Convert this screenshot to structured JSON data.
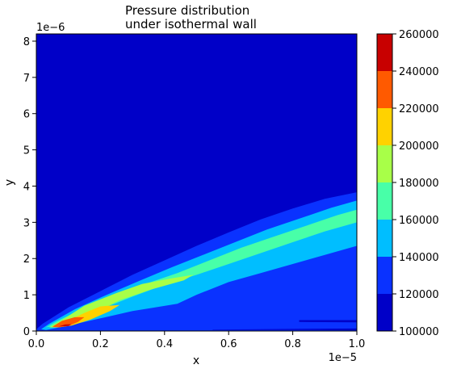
{
  "chart_data": {
    "type": "contourf",
    "title_lines": [
      "Pressure distribution",
      "under isothermal wall"
    ],
    "xlabel": "x",
    "ylabel": "y",
    "x_offset_text": "1e−5",
    "y_offset_text": "1e−6",
    "xlim": [
      0.0,
      1.0
    ],
    "ylim": [
      0.0,
      8.2
    ],
    "xticks": [
      0.0,
      0.2,
      0.4,
      0.6,
      0.8,
      1.0
    ],
    "xtick_labels": [
      "0.0",
      "0.2",
      "0.4",
      "0.6",
      "0.8",
      "1.0"
    ],
    "yticks": [
      0,
      1,
      2,
      3,
      4,
      5,
      6,
      7,
      8
    ],
    "ytick_labels": [
      "0",
      "1",
      "2",
      "3",
      "4",
      "5",
      "6",
      "7",
      "8"
    ],
    "colorbar": {
      "levels": [
        100000,
        120000,
        140000,
        160000,
        180000,
        200000,
        220000,
        240000,
        260000
      ],
      "tick_labels": [
        "100000",
        "120000",
        "140000",
        "160000",
        "180000",
        "200000",
        "220000",
        "240000",
        "260000"
      ],
      "colors": [
        "#0000c8",
        "#0a32ff",
        "#00beff",
        "#48ffa8",
        "#a8ff48",
        "#ffd200",
        "#ff5a00",
        "#c80000"
      ],
      "ranges": [
        "100000-120000",
        "120000-140000",
        "140000-160000",
        "160000-180000",
        "180000-200000",
        "200000-220000",
        "220000-240000",
        "240000-260000"
      ]
    },
    "regions": [
      {
        "level": 1,
        "name": "120000-140000 band",
        "points": [
          [
            0.0,
            0.05
          ],
          [
            0.02,
            0.2
          ],
          [
            0.1,
            0.65
          ],
          [
            0.2,
            1.1
          ],
          [
            0.3,
            1.55
          ],
          [
            0.4,
            1.95
          ],
          [
            0.5,
            2.35
          ],
          [
            0.6,
            2.72
          ],
          [
            0.7,
            3.08
          ],
          [
            0.8,
            3.38
          ],
          [
            0.9,
            3.65
          ],
          [
            1.0,
            3.83
          ],
          [
            1.0,
            0.0
          ],
          [
            0.0,
            0.0
          ]
        ]
      },
      {
        "level": 2,
        "name": "140000-160000 band",
        "points": [
          [
            0.015,
            0.05
          ],
          [
            0.04,
            0.2
          ],
          [
            0.12,
            0.6
          ],
          [
            0.22,
            1.0
          ],
          [
            0.32,
            1.38
          ],
          [
            0.42,
            1.75
          ],
          [
            0.52,
            2.1
          ],
          [
            0.62,
            2.45
          ],
          [
            0.72,
            2.8
          ],
          [
            0.82,
            3.1
          ],
          [
            0.92,
            3.4
          ],
          [
            1.0,
            3.6
          ],
          [
            1.0,
            2.35
          ],
          [
            0.9,
            2.1
          ],
          [
            0.8,
            1.85
          ],
          [
            0.7,
            1.6
          ],
          [
            0.6,
            1.35
          ],
          [
            0.5,
            1.0
          ],
          [
            0.44,
            0.75
          ],
          [
            0.3,
            0.55
          ],
          [
            0.2,
            0.35
          ],
          [
            0.1,
            0.15
          ],
          [
            0.05,
            0.06
          ],
          [
            0.03,
            0.03
          ]
        ]
      },
      {
        "level": 3,
        "name": "160000-180000 band",
        "points": [
          [
            0.03,
            0.1
          ],
          [
            0.06,
            0.25
          ],
          [
            0.14,
            0.6
          ],
          [
            0.24,
            0.95
          ],
          [
            0.34,
            1.3
          ],
          [
            0.44,
            1.6
          ],
          [
            0.54,
            1.95
          ],
          [
            0.64,
            2.3
          ],
          [
            0.74,
            2.6
          ],
          [
            0.84,
            2.9
          ],
          [
            0.94,
            3.2
          ],
          [
            1.0,
            3.35
          ],
          [
            1.0,
            3.0
          ],
          [
            0.9,
            2.75
          ],
          [
            0.8,
            2.45
          ],
          [
            0.7,
            2.15
          ],
          [
            0.6,
            1.85
          ],
          [
            0.5,
            1.55
          ],
          [
            0.4,
            1.28
          ],
          [
            0.3,
            0.95
          ],
          [
            0.2,
            0.6
          ],
          [
            0.12,
            0.35
          ],
          [
            0.06,
            0.15
          ]
        ]
      },
      {
        "level": 4,
        "name": "180000-200000 region",
        "points": [
          [
            0.04,
            0.1
          ],
          [
            0.08,
            0.3
          ],
          [
            0.15,
            0.7
          ],
          [
            0.25,
            1.05
          ],
          [
            0.33,
            1.3
          ],
          [
            0.42,
            1.45
          ],
          [
            0.49,
            1.55
          ],
          [
            0.46,
            1.4
          ],
          [
            0.36,
            1.15
          ],
          [
            0.26,
            0.85
          ],
          [
            0.18,
            0.5
          ],
          [
            0.1,
            0.2
          ],
          [
            0.06,
            0.1
          ]
        ]
      },
      {
        "level": 5,
        "name": "200000-220000 region",
        "points": [
          [
            0.05,
            0.1
          ],
          [
            0.09,
            0.25
          ],
          [
            0.15,
            0.5
          ],
          [
            0.2,
            0.68
          ],
          [
            0.26,
            0.72
          ],
          [
            0.23,
            0.55
          ],
          [
            0.17,
            0.32
          ],
          [
            0.11,
            0.15
          ],
          [
            0.07,
            0.1
          ]
        ]
      },
      {
        "level": 6,
        "name": "220000-240000 region",
        "points": [
          [
            0.05,
            0.12
          ],
          [
            0.08,
            0.28
          ],
          [
            0.12,
            0.38
          ],
          [
            0.15,
            0.38
          ],
          [
            0.13,
            0.25
          ],
          [
            0.1,
            0.14
          ],
          [
            0.07,
            0.1
          ]
        ]
      },
      {
        "level": 7,
        "name": "240000-260000 region",
        "points": [
          [
            0.07,
            0.13
          ],
          [
            0.09,
            0.18
          ],
          [
            0.11,
            0.19
          ],
          [
            0.1,
            0.14
          ]
        ]
      },
      {
        "level": 0,
        "name": "100000-120000 streak near wall",
        "points": [
          [
            0.55,
            0.04
          ],
          [
            0.7,
            0.05
          ],
          [
            0.85,
            0.06
          ],
          [
            1.0,
            0.07
          ],
          [
            1.0,
            0.02
          ],
          [
            0.85,
            0.03
          ],
          [
            0.7,
            0.03
          ],
          [
            0.55,
            0.03
          ]
        ]
      },
      {
        "level": 0,
        "name": "100000-120000 streak upper",
        "points": [
          [
            0.82,
            0.3
          ],
          [
            1.0,
            0.3
          ],
          [
            1.0,
            0.24
          ],
          [
            0.82,
            0.25
          ]
        ]
      }
    ]
  }
}
